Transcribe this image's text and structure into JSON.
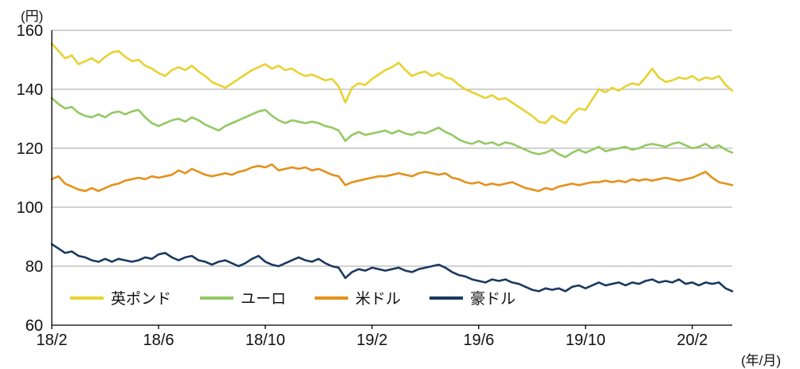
{
  "chart_data": {
    "type": "line",
    "title": "",
    "y_axis": {
      "unit_label": "(円)",
      "min": 60,
      "max": 160,
      "ticks": [
        160,
        140,
        120,
        100,
        80,
        60
      ],
      "gridlines": [
        80,
        100,
        120,
        140,
        160
      ],
      "grid": true
    },
    "x_axis": {
      "unit_label": "(年/月)",
      "start_month": 0,
      "month_step": 0.25,
      "max_month": 25.5,
      "ticks": [
        {
          "month": 0,
          "label": "18/2"
        },
        {
          "month": 4,
          "label": "18/6"
        },
        {
          "month": 8,
          "label": "18/10"
        },
        {
          "month": 12,
          "label": "19/2"
        },
        {
          "month": 16,
          "label": "19/6"
        },
        {
          "month": 20,
          "label": "19/10"
        },
        {
          "month": 24,
          "label": "20/2"
        }
      ]
    },
    "legend_position": "inside-bottom-left",
    "series": [
      {
        "name": "英ポンド",
        "color": "#e8d231",
        "values": [
          155.5,
          153,
          150.5,
          151.5,
          148.5,
          149.5,
          150.5,
          149,
          151,
          152.5,
          153,
          151,
          149.5,
          150,
          148,
          147,
          145.5,
          144.5,
          146.5,
          147.5,
          146.5,
          148,
          146,
          144.5,
          142.5,
          141.5,
          140.5,
          142,
          143.5,
          145,
          146.5,
          147.5,
          148.5,
          147,
          148,
          146.5,
          147,
          145.5,
          144.5,
          145,
          144,
          143,
          143.5,
          141,
          135.5,
          140.5,
          142,
          141.5,
          143.5,
          145,
          146.5,
          147.5,
          149,
          146.5,
          144.5,
          145.5,
          146,
          144.5,
          145.5,
          144,
          143.5,
          141.5,
          140,
          139,
          138,
          137,
          138,
          136.5,
          137,
          135.5,
          134,
          132.5,
          131,
          129,
          128.5,
          131,
          129.5,
          128.5,
          131.5,
          133.5,
          133,
          136.5,
          140,
          139,
          140.5,
          139.5,
          141,
          142,
          141.5,
          144,
          147,
          144,
          142.5,
          143,
          144,
          143.5,
          144.5,
          143,
          144,
          143.5,
          144.5,
          141.5,
          139.5
        ]
      },
      {
        "name": "ユーロ",
        "color": "#93c964",
        "values": [
          137,
          135,
          133.5,
          134,
          132,
          131,
          130.5,
          131.5,
          130.5,
          132,
          132.5,
          131.5,
          132.5,
          133,
          130.5,
          128.5,
          127.5,
          128.5,
          129.5,
          130,
          129,
          130.5,
          129.5,
          128,
          127,
          126,
          127.5,
          128.5,
          129.5,
          130.5,
          131.5,
          132.5,
          133,
          131,
          129.5,
          128.5,
          129.5,
          129,
          128.5,
          129,
          128.5,
          127.5,
          127,
          126,
          122.5,
          124.5,
          125.5,
          124.5,
          125,
          125.5,
          126,
          125,
          126,
          125,
          124.5,
          125.5,
          125,
          126,
          127,
          125.5,
          124.5,
          123,
          122,
          121.5,
          122.5,
          121.5,
          122,
          121,
          122,
          121.5,
          120.5,
          119.5,
          118.5,
          118,
          118.5,
          119.5,
          118,
          117,
          118.5,
          119.5,
          118.5,
          119.5,
          120.5,
          119,
          119.5,
          120,
          120.5,
          119.5,
          120,
          121,
          121.5,
          121,
          120.5,
          121.5,
          122,
          121,
          120,
          120.5,
          121.5,
          120,
          121,
          119.5,
          118.5
        ]
      },
      {
        "name": "米ドル",
        "color": "#e5911d",
        "values": [
          109.5,
          110.5,
          108,
          107,
          106,
          105.5,
          106.5,
          105.5,
          106.5,
          107.5,
          108,
          109,
          109.5,
          110,
          109.5,
          110.5,
          110,
          110.5,
          111,
          112.5,
          111.5,
          113,
          112,
          111,
          110.5,
          111,
          111.5,
          111,
          112,
          112.5,
          113.5,
          114,
          113.5,
          114.5,
          112.5,
          113,
          113.5,
          113,
          113.5,
          112.5,
          113,
          112,
          111,
          110.5,
          107.5,
          108.5,
          109,
          109.5,
          110,
          110.5,
          110.5,
          111,
          111.5,
          111,
          110.5,
          111.5,
          112,
          111.5,
          111,
          111.5,
          110,
          109.5,
          108.5,
          108,
          108.5,
          107.5,
          108,
          107.5,
          108,
          108.5,
          107.5,
          106.5,
          106,
          105.5,
          106.5,
          106,
          107,
          107.5,
          108,
          107.5,
          108,
          108.5,
          108.5,
          109,
          108.5,
          109,
          108.5,
          109.5,
          109,
          109.5,
          109,
          109.5,
          110,
          109.5,
          109,
          109.5,
          110,
          111,
          112,
          110,
          108.5,
          108,
          107.5
        ]
      },
      {
        "name": "豪ドル",
        "color": "#1a3a60",
        "values": [
          87.5,
          86,
          84.5,
          85,
          83.5,
          83,
          82,
          81.5,
          82.5,
          81.5,
          82.5,
          82,
          81.5,
          82,
          83,
          82.5,
          84,
          84.5,
          83,
          82,
          83,
          83.5,
          82,
          81.5,
          80.5,
          81.5,
          82,
          81,
          80,
          81,
          82.5,
          83.5,
          81.5,
          80.5,
          80,
          81,
          82,
          83,
          82,
          81.5,
          82.5,
          81,
          80,
          79.5,
          76,
          78,
          79,
          78.5,
          79.5,
          79,
          78.5,
          79,
          79.5,
          78.5,
          78,
          79,
          79.5,
          80,
          80.5,
          79.5,
          78,
          77,
          76.5,
          75.5,
          75,
          74.5,
          75.5,
          75,
          75.5,
          74.5,
          74,
          73,
          72,
          71.5,
          72.5,
          72,
          72.5,
          71.5,
          73,
          73.5,
          72.5,
          73.5,
          74.5,
          73.5,
          74,
          74.5,
          73.5,
          74.5,
          74,
          75,
          75.5,
          74.5,
          75,
          74.5,
          75.5,
          74,
          74.5,
          73.5,
          74.5,
          74,
          74.5,
          72.5,
          71.5
        ]
      }
    ]
  }
}
